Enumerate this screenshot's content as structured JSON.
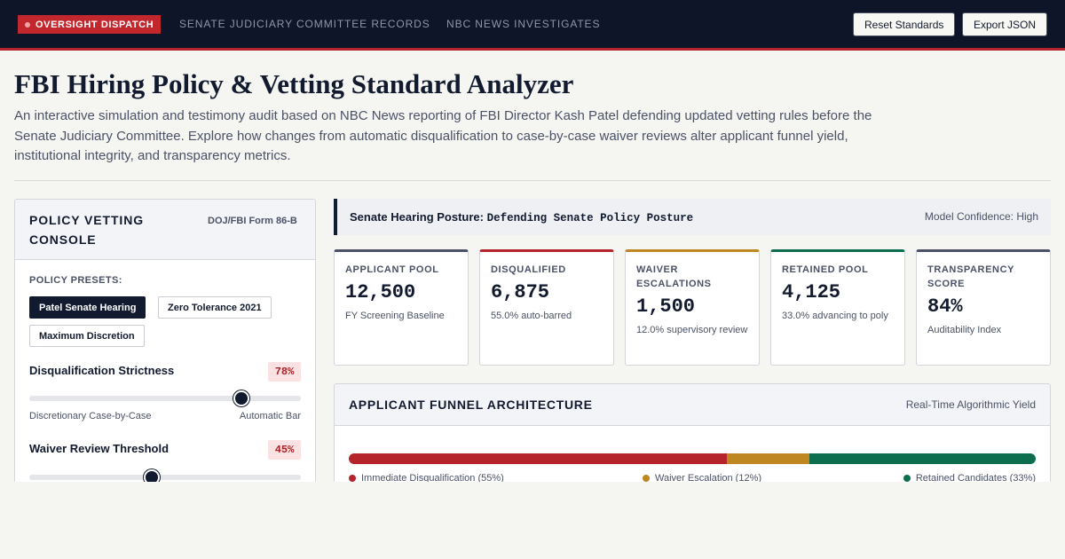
{
  "topbar": {
    "brand": "OVERSIGHT DISPATCH",
    "links": [
      "SENATE JUDICIARY COMMITTEE RECORDS",
      "NBC NEWS INVESTIGATES"
    ],
    "reset_label": "Reset Standards",
    "export_label": "Export JSON"
  },
  "page": {
    "title": "FBI Hiring Policy & Vetting Standard Analyzer",
    "intro": "An interactive simulation and testimony audit based on NBC News reporting of FBI Director Kash Patel defending updated vetting rules before the Senate Judiciary Committee. Explore how changes from automatic disqualification to case-by-case waiver reviews alter applicant funnel yield, institutional integrity, and transparency metrics."
  },
  "console": {
    "title": "POLICY VETTING CONSOLE",
    "form": "DOJ/FBI Form 86-B",
    "presets_label": "POLICY PRESETS:",
    "presets": [
      {
        "label": "Patel Senate Hearing",
        "active": true
      },
      {
        "label": "Zero Tolerance 2021",
        "active": false
      },
      {
        "label": "Maximum Discretion",
        "active": false
      }
    ],
    "sliders": [
      {
        "label": "Disqualification Strictness",
        "value_text": "78%",
        "value": 0.78,
        "min_label": "Discretionary Case-by-Case",
        "max_label": "Automatic Bar"
      },
      {
        "label": "Waiver Review Threshold",
        "value_text": "45%",
        "value": 0.45
      }
    ]
  },
  "posture": {
    "label": "Senate Hearing Posture:",
    "value": "Defending Senate Policy Posture",
    "confidence": "Model Confidence: High"
  },
  "metrics": [
    {
      "label": "APPLICANT POOL",
      "value": "12,500",
      "sub": "FY Screening Baseline",
      "color": "#4b5266"
    },
    {
      "label": "DISQUALIFIED",
      "value": "6,875",
      "sub": "55.0% auto-barred",
      "color": "#b5232b"
    },
    {
      "label": "WAIVER ESCALATIONS",
      "value": "1,500",
      "sub": "12.0% supervisory review",
      "color": "#bf8722"
    },
    {
      "label": "RETAINED POOL",
      "value": "4,125",
      "sub": "33.0% advancing to poly",
      "color": "#0d6e4f"
    },
    {
      "label": "TRANSPARENCY SCORE",
      "value": "84%",
      "sub": "Auditability Index",
      "color": "#4b5266"
    }
  ],
  "funnel": {
    "title": "APPLICANT FUNNEL ARCHITECTURE",
    "subtitle": "Real-Time Algorithmic Yield",
    "segments": [
      {
        "label": "Immediate Disqualification (55%)",
        "share": 55,
        "color": "#b5232b"
      },
      {
        "label": "Waiver Escalation (12%)",
        "share": 12,
        "color": "#bf8722"
      },
      {
        "label": "Retained Candidates (33%)",
        "share": 33,
        "color": "#0d6e4f"
      }
    ]
  }
}
